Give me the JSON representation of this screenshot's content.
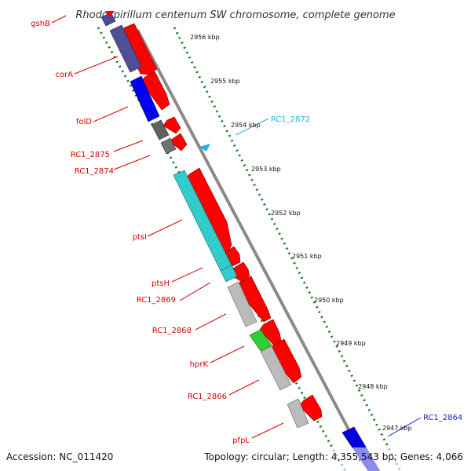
{
  "title": "Rhodospirillum centenum SW chromosome, complete genome",
  "footer": {
    "accession": "Accession: NC_011420",
    "summary": "Topology: circular; Length: 4,355,543 bp; Genes: 4,066"
  },
  "colors": {
    "forward": "#ff0000",
    "label_red": "#d40000",
    "label_cyan": "#2ab0e6",
    "label_blue": "#1a1acc",
    "ticks": "#1a7a1a",
    "backbone": "#888888"
  },
  "scale_labels": [
    "2956 kbp",
    "2955 kbp",
    "2954 kbp",
    "2953 kbp",
    "2952 kbp",
    "2951 kbp",
    "2950 kbp",
    "2949 kbp",
    "2948 kbp",
    "2947 kbp"
  ],
  "genes": [
    {
      "label": "gshB",
      "color": "label_red"
    },
    {
      "label": "corA",
      "color": "label_red"
    },
    {
      "label": "folD",
      "color": "label_red"
    },
    {
      "label": "RC1_2875",
      "color": "label_red"
    },
    {
      "label": "RC1_2874",
      "color": "label_red"
    },
    {
      "label": "ptsI",
      "color": "label_red"
    },
    {
      "label": "ptsH",
      "color": "label_red"
    },
    {
      "label": "RC1_2869",
      "color": "label_red"
    },
    {
      "label": "RC1_2868",
      "color": "label_red"
    },
    {
      "label": "hprK",
      "color": "label_red"
    },
    {
      "label": "RC1_2866",
      "color": "label_red"
    },
    {
      "label": "pfpL",
      "color": "label_red"
    },
    {
      "label": "RC1_2872",
      "color": "label_cyan"
    },
    {
      "label": "RC1_2864",
      "color": "label_blue"
    }
  ]
}
